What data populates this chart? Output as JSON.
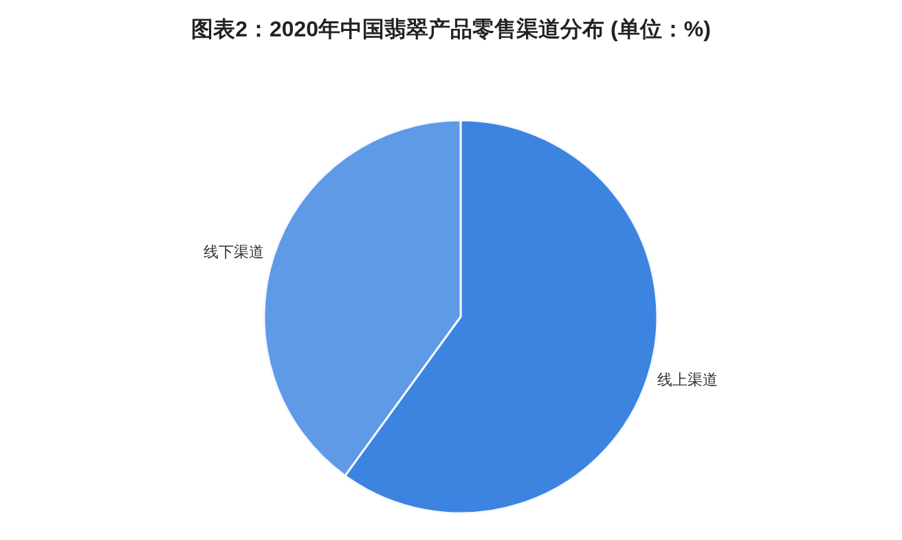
{
  "chart_data": {
    "type": "pie",
    "title": "图表2：2020年中国翡翠产品零售渠道分布 (单位：%)",
    "categories": [
      "线上渠道",
      "线下渠道"
    ],
    "values": [
      60,
      40
    ],
    "colors": [
      "#3d84e0",
      "#5f9ae7"
    ]
  }
}
